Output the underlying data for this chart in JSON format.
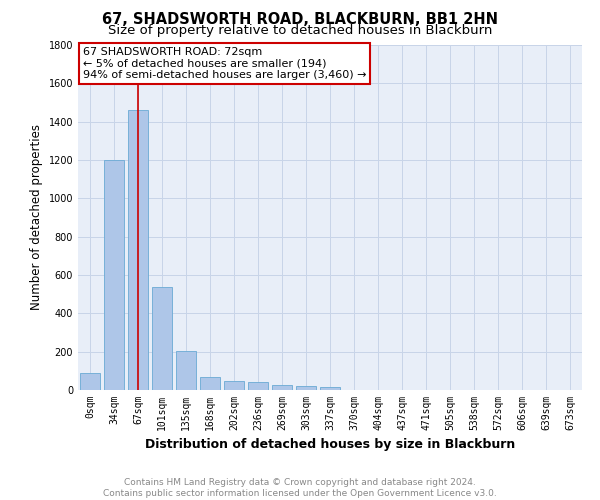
{
  "title": "67, SHADSWORTH ROAD, BLACKBURN, BB1 2HN",
  "subtitle": "Size of property relative to detached houses in Blackburn",
  "xlabel": "Distribution of detached houses by size in Blackburn",
  "ylabel": "Number of detached properties",
  "categories": [
    "0sqm",
    "34sqm",
    "67sqm",
    "101sqm",
    "135sqm",
    "168sqm",
    "202sqm",
    "236sqm",
    "269sqm",
    "303sqm",
    "337sqm",
    "370sqm",
    "404sqm",
    "437sqm",
    "471sqm",
    "505sqm",
    "538sqm",
    "572sqm",
    "606sqm",
    "639sqm",
    "673sqm"
  ],
  "bar_values": [
    90,
    1200,
    1460,
    540,
    205,
    70,
    48,
    40,
    28,
    20,
    15,
    0,
    0,
    0,
    0,
    0,
    0,
    0,
    0,
    0,
    0
  ],
  "bar_color": "#aec6e8",
  "bar_edge_color": "#6aaad4",
  "ylim": [
    0,
    1800
  ],
  "yticks": [
    0,
    200,
    400,
    600,
    800,
    1000,
    1200,
    1400,
    1600,
    1800
  ],
  "property_line_x": 2,
  "property_line_color": "#cc0000",
  "annotation_box_text": "67 SHADSWORTH ROAD: 72sqm\n← 5% of detached houses are smaller (194)\n94% of semi-detached houses are larger (3,460) →",
  "annotation_box_color": "#cc0000",
  "grid_color": "#c8d4e8",
  "ax_bg_color": "#e8eef8",
  "background_color": "#ffffff",
  "footer_line1": "Contains HM Land Registry data © Crown copyright and database right 2024.",
  "footer_line2": "Contains public sector information licensed under the Open Government Licence v3.0.",
  "title_fontsize": 10.5,
  "subtitle_fontsize": 9.5,
  "xlabel_fontsize": 9,
  "ylabel_fontsize": 8.5,
  "tick_fontsize": 7,
  "footer_fontsize": 6.5,
  "annotation_fontsize": 8
}
